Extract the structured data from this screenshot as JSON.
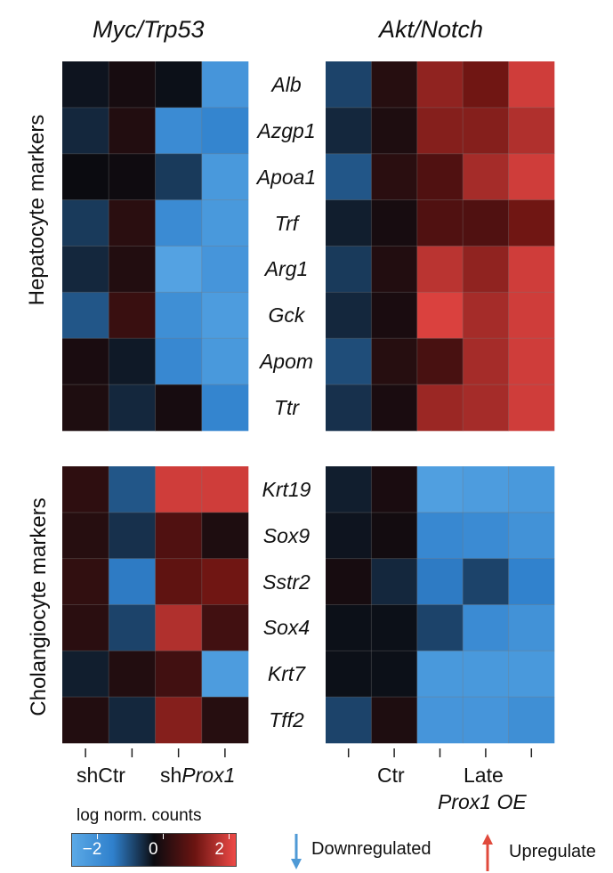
{
  "chart_data": {
    "type": "heatmap",
    "color_scale": {
      "title": "log norm. counts",
      "range": [
        -2.5,
        2.5
      ],
      "ticks": [
        -2,
        0,
        2
      ],
      "tick_labels": [
        "−2",
        "0",
        "2"
      ],
      "colors": [
        "#5ba9e6",
        "#2f80cc",
        "#0b0b10",
        "#6b1411",
        "#ef4a47"
      ]
    },
    "panels": [
      {
        "model": "Myc/Trp53",
        "group": "Hepatocyte markers",
        "genes": [
          "Alb",
          "Azgp1",
          "Apoa1",
          "Trf",
          "Arg1",
          "Gck",
          "Apom",
          "Ttr"
        ],
        "columns": 4,
        "values": [
          [
            -0.1,
            0.15,
            -0.05,
            -1.9
          ],
          [
            -0.3,
            0.3,
            -1.6,
            -1.4
          ],
          [
            0.0,
            0.05,
            -0.5,
            -2.0
          ],
          [
            -0.5,
            0.4,
            -1.6,
            -2.0
          ],
          [
            -0.3,
            0.3,
            -2.3,
            -1.9
          ],
          [
            -0.8,
            0.6,
            -1.7,
            -2.1
          ],
          [
            0.2,
            -0.15,
            -1.5,
            -2.0
          ],
          [
            0.25,
            -0.3,
            0.15,
            -1.4
          ]
        ]
      },
      {
        "model": "Akt/Notch",
        "group": "Hepatocyte markers",
        "genes": [
          "Alb",
          "Azgp1",
          "Apoa1",
          "Trf",
          "Arg1",
          "Gck",
          "Apom",
          "Ttr"
        ],
        "columns": 5,
        "values": [
          [
            -0.6,
            0.35,
            1.6,
            1.3,
            2.2
          ],
          [
            -0.3,
            0.25,
            1.5,
            1.5,
            1.9
          ],
          [
            -0.8,
            0.4,
            0.9,
            1.8,
            2.2
          ],
          [
            -0.2,
            0.15,
            0.9,
            0.9,
            1.3
          ],
          [
            -0.5,
            0.3,
            2.0,
            1.6,
            2.2
          ],
          [
            -0.3,
            0.2,
            2.3,
            1.8,
            2.2
          ],
          [
            -0.7,
            0.35,
            0.8,
            1.8,
            2.2
          ],
          [
            -0.4,
            0.2,
            1.7,
            1.8,
            2.2
          ]
        ]
      },
      {
        "model": "Myc/Trp53",
        "group": "Cholangiocyte markers",
        "genes": [
          "Krt19",
          "Sox9",
          "Sstr2",
          "Sox4",
          "Krt7",
          "Tff2"
        ],
        "columns": 4,
        "values": [
          [
            0.45,
            -0.8,
            2.2,
            2.2
          ],
          [
            0.35,
            -0.4,
            0.9,
            0.25
          ],
          [
            0.5,
            -1.2,
            1.1,
            1.3
          ],
          [
            0.4,
            -0.6,
            1.9,
            0.7
          ],
          [
            -0.2,
            0.3,
            0.7,
            -2.1
          ],
          [
            0.3,
            -0.3,
            1.5,
            0.35
          ]
        ]
      },
      {
        "model": "Akt/Notch",
        "group": "Cholangiocyte markers",
        "genes": [
          "Krt19",
          "Sox9",
          "Sstr2",
          "Sox4",
          "Krt7",
          "Tff2"
        ],
        "columns": 5,
        "values": [
          [
            -0.2,
            0.2,
            -2.2,
            -2.1,
            -2.0
          ],
          [
            -0.1,
            0.1,
            -1.5,
            -1.6,
            -1.8
          ],
          [
            0.15,
            -0.3,
            -1.2,
            -0.6,
            -1.3
          ],
          [
            -0.05,
            -0.05,
            -0.6,
            -1.6,
            -1.8
          ],
          [
            -0.05,
            -0.05,
            -2.0,
            -2.0,
            -2.0
          ],
          [
            -0.6,
            0.25,
            -1.9,
            -1.9,
            -1.7
          ]
        ]
      }
    ],
    "x_labels": {
      "left": [
        "shCtr",
        "shProx1"
      ],
      "right": [
        "Ctr",
        "Late",
        "Prox1 OE"
      ]
    }
  },
  "titles": {
    "left": "Myc/Trp53",
    "right": "Akt/Notch"
  },
  "groups": {
    "top": "Hepatocyte markers",
    "bottom": "Cholangiocyte markers"
  },
  "xaxis": {
    "sh_ctr": "shCtr",
    "sh_prefix": "sh",
    "sh_gene": "Prox1",
    "ctr": "Ctr",
    "late": "Late",
    "prox1_oe": "Prox1 OE"
  },
  "legend": {
    "colorbar_title": "log norm. counts",
    "down_label": "Downregulated",
    "up_label": "Upregulate",
    "down_color": "#4f9ad6",
    "up_color": "#e04a3c"
  }
}
